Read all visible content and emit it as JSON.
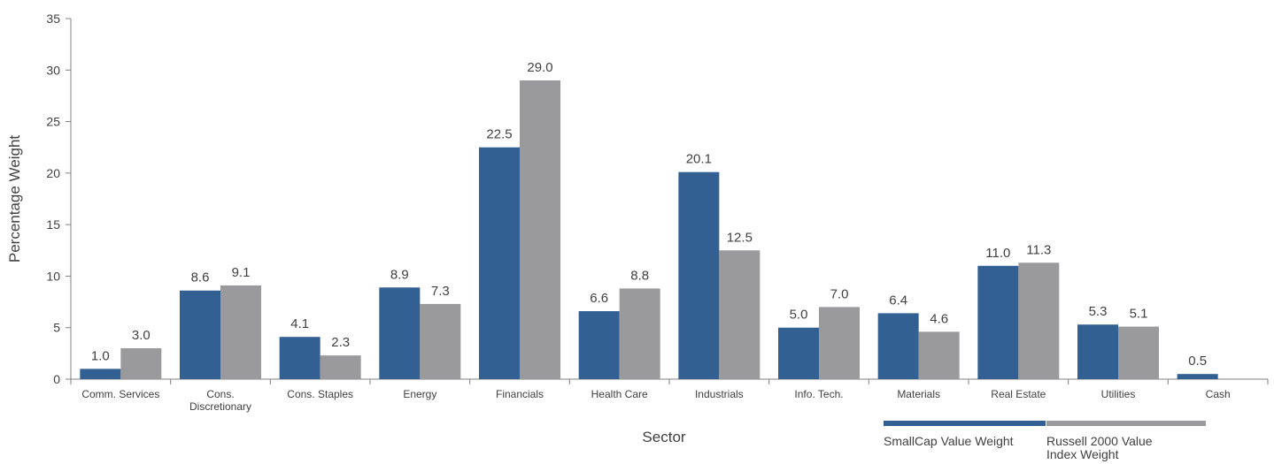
{
  "chart_data": {
    "type": "bar",
    "categories": [
      [
        "Comm. Services"
      ],
      [
        "Cons.",
        "Discretionary"
      ],
      [
        "Cons. Staples"
      ],
      [
        "Energy"
      ],
      [
        "Financials"
      ],
      [
        "Health Care"
      ],
      [
        "Industrials"
      ],
      [
        "Info. Tech."
      ],
      [
        "Materials"
      ],
      [
        "Real Estate"
      ],
      [
        "Utilities"
      ],
      [
        "Cash"
      ]
    ],
    "series": [
      {
        "name": [
          "SmallCap Value Weight"
        ],
        "color": "#326093",
        "values": [
          1.0,
          8.6,
          4.1,
          8.9,
          22.5,
          6.6,
          20.1,
          5.0,
          6.4,
          11.0,
          5.3,
          0.5
        ],
        "labels": [
          "1.0",
          "8.6",
          "4.1",
          "8.9",
          "22.5",
          "6.6",
          "20.1",
          "5.0",
          "6.4",
          "11.0",
          "5.3",
          "0.5"
        ]
      },
      {
        "name": [
          "Russell 2000 Value",
          "Index Weight"
        ],
        "color": "#9a9a9c",
        "values": [
          3.0,
          9.1,
          2.3,
          7.3,
          29.0,
          8.8,
          12.5,
          7.0,
          4.6,
          11.3,
          5.1,
          null
        ],
        "labels": [
          "3.0",
          "9.1",
          "2.3",
          "7.3",
          "29.0",
          "8.8",
          "12.5",
          "7.0",
          "4.6",
          "11.3",
          "5.1",
          null
        ]
      }
    ],
    "ylim": [
      0,
      35
    ],
    "yticks": [
      0,
      5,
      10,
      15,
      20,
      25,
      30,
      35
    ],
    "title": "",
    "xlabel": "Sector",
    "ylabel": "Percentage Weight",
    "grid": false,
    "legend_position": "bottom-right"
  }
}
